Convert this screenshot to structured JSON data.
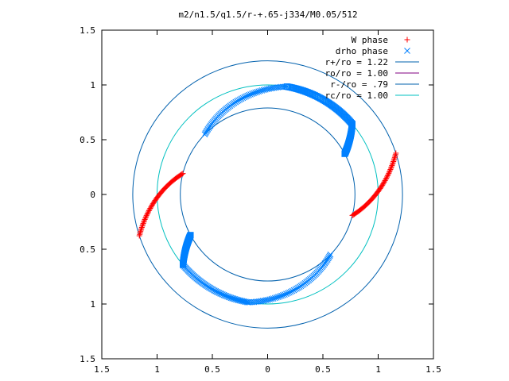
{
  "chart_data": {
    "type": "scatter",
    "title": "m2/n1.5/q1.5/r-+.65-j334/M0.05/512",
    "xlim": [
      -1.5,
      1.5
    ],
    "ylim": [
      -1.5,
      1.5
    ],
    "xticks": [
      -1.5,
      -1,
      -0.5,
      0,
      0.5,
      1,
      1.5
    ],
    "yticks": [
      -1.5,
      -1,
      -0.5,
      0,
      0.5,
      1,
      1.5
    ],
    "xtick_labels": [
      "1.5",
      "1",
      "0.5",
      "0",
      "0.5",
      "1",
      "1.5"
    ],
    "ytick_labels": [
      "1.5",
      "1",
      "0.5",
      "0",
      "0.5",
      "1",
      "1.5"
    ],
    "grid": false,
    "legend_position": "top-right",
    "point_series": [
      {
        "name": "W phase",
        "marker": "plus",
        "color": "#ff0000",
        "arcs": [
          {
            "r0": 0.79,
            "r1": 1.22,
            "theta0_deg": -14,
            "theta1_deg": 18
          },
          {
            "r0": 0.79,
            "r1": 1.22,
            "theta0_deg": 166,
            "theta1_deg": 198
          }
        ]
      },
      {
        "name": "drho phase",
        "marker": "cross",
        "color": "#0080ff",
        "arcs": [
          {
            "r0": 0.79,
            "r1": 1.0,
            "theta0_deg": 136,
            "theta1_deg": 80
          },
          {
            "r0": 1.0,
            "r1": 1.0,
            "theta0_deg": 80,
            "theta1_deg": 40,
            "marker": "box"
          },
          {
            "r0": 1.0,
            "r1": 0.79,
            "theta0_deg": 40,
            "theta1_deg": 28,
            "marker": "box"
          },
          {
            "r0": 0.79,
            "r1": 1.0,
            "theta0_deg": -44,
            "theta1_deg": -100
          },
          {
            "r0": 1.0,
            "r1": 1.0,
            "theta0_deg": -100,
            "theta1_deg": -140
          },
          {
            "r0": 1.0,
            "r1": 0.79,
            "theta0_deg": -140,
            "theta1_deg": -152,
            "marker": "box"
          }
        ]
      }
    ],
    "circles": [
      {
        "name": "r+/ro = 1.22",
        "r": 1.22,
        "color": "#0060ad"
      },
      {
        "name": "ro/ro = 1.00",
        "r": 1.0,
        "color": "#800080",
        "drawn": false
      },
      {
        "name": "r-/ro = .79",
        "r": 0.79,
        "color": "#0060ad"
      },
      {
        "name": "rc/ro = 1.00",
        "r": 1.0,
        "color": "#00c0c0"
      }
    ]
  }
}
